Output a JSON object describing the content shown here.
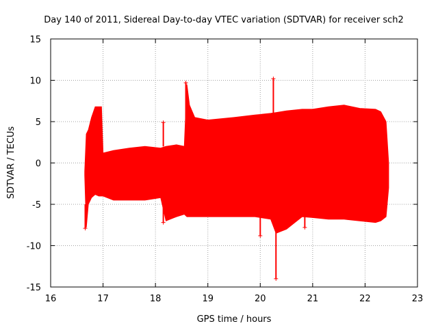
{
  "chart_data": {
    "type": "line",
    "title": "Day 140 of 2011, Sidereal Day-to-day VTEC variation (SDTVAR) for receiver sch2",
    "xlabel": "GPS time / hours",
    "ylabel": "SDTVAR / TECUs",
    "xlim": [
      16,
      23
    ],
    "ylim": [
      -15,
      15
    ],
    "xticks": [
      16,
      17,
      18,
      19,
      20,
      21,
      22,
      23
    ],
    "yticks": [
      -15,
      -10,
      -5,
      0,
      5,
      10,
      15
    ],
    "grid": true,
    "series_color": "#ff0000",
    "series": [
      {
        "name": "SDTVAR envelope",
        "x": [
          16.65,
          16.68,
          16.72,
          16.78,
          16.85,
          16.92,
          16.97,
          17.0,
          17.2,
          17.5,
          17.8,
          18.1,
          18.2,
          18.4,
          18.55,
          18.6,
          18.65,
          18.75,
          19.0,
          19.5,
          19.9,
          20.2,
          20.3,
          20.5,
          20.8,
          21.0,
          21.3,
          21.6,
          21.9,
          22.2,
          22.3,
          22.4,
          22.45
        ],
        "upper": [
          -1.0,
          3.5,
          4.0,
          5.5,
          6.8,
          6.8,
          6.8,
          1.2,
          1.5,
          1.8,
          2.0,
          1.8,
          2.0,
          2.2,
          2.0,
          9.5,
          7.0,
          5.5,
          5.2,
          5.5,
          5.8,
          6.0,
          6.1,
          6.3,
          6.5,
          6.5,
          6.8,
          7.0,
          6.6,
          6.5,
          6.2,
          5.0,
          0.0
        ],
        "lower": [
          -1.5,
          -7.8,
          -5.0,
          -4.2,
          -3.8,
          -4.0,
          -4.0,
          -4.0,
          -4.5,
          -4.5,
          -4.5,
          -4.2,
          -7.0,
          -6.5,
          -6.2,
          -6.5,
          -6.5,
          -6.5,
          -6.5,
          -6.5,
          -6.5,
          -6.8,
          -8.5,
          -8.0,
          -6.5,
          -6.6,
          -6.8,
          -6.8,
          -7.0,
          -7.2,
          -7.0,
          -6.5,
          -3.0
        ]
      }
    ],
    "spikes": [
      {
        "x": 16.66,
        "y": -7.9
      },
      {
        "x": 18.15,
        "y": 4.9
      },
      {
        "x": 18.15,
        "y": -7.2
      },
      {
        "x": 18.58,
        "y": 9.7
      },
      {
        "x": 20.0,
        "y": -8.8
      },
      {
        "x": 20.25,
        "y": 10.2
      },
      {
        "x": 20.3,
        "y": -14.0
      },
      {
        "x": 20.85,
        "y": -7.8
      }
    ]
  }
}
